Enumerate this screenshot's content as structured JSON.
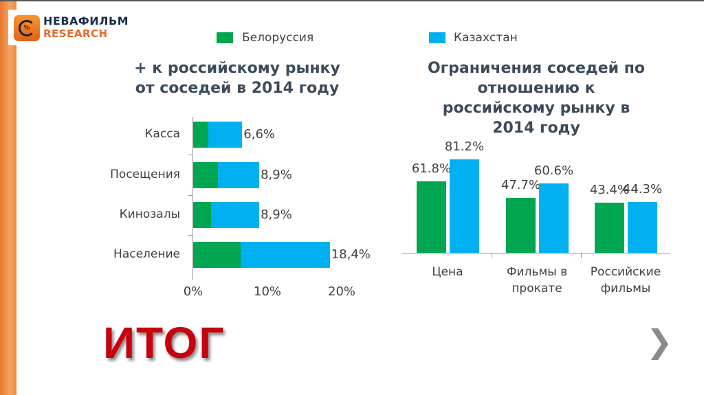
{
  "logo": {
    "line1": "НЕВАФИЛЬМ",
    "line2": "RESEARCH"
  },
  "legend": [
    {
      "name": "Белоруссия",
      "color": "#00a650"
    },
    {
      "name": "Казахстан",
      "color": "#00b0f0"
    }
  ],
  "footer": {
    "title": "ИТОГ",
    "next_icon": "chevron-right-icon"
  },
  "chart_data": [
    {
      "type": "bar",
      "orientation": "horizontal",
      "stacked": true,
      "title": "+ к российскому рынку от соседей в 2014 году",
      "categories": [
        "Касса",
        "Посещения",
        "Кинозалы",
        "Население"
      ],
      "series": [
        {
          "name": "Белоруссия",
          "values": [
            2.0,
            3.3,
            2.4,
            6.4
          ]
        },
        {
          "name": "Казахстан",
          "values": [
            4.6,
            5.6,
            6.5,
            12.0
          ]
        }
      ],
      "totals": [
        "6,6%",
        "8,9%",
        "8,9%",
        "18,4%"
      ],
      "xticks": [
        "0%",
        "10%",
        "20%"
      ],
      "xlim": [
        0,
        20
      ],
      "grid": false
    },
    {
      "type": "bar",
      "orientation": "vertical",
      "title": "Ограничения соседей по отношению к российскому рынку в 2014 году",
      "categories": [
        "Цена",
        "Фильмы в прокате",
        "Российские фильмы"
      ],
      "series": [
        {
          "name": "Белоруссия",
          "values": [
            61.8,
            47.7,
            43.4
          ],
          "labels": [
            "61.8%",
            "47.7%",
            "43.4%"
          ]
        },
        {
          "name": "Казахстан",
          "values": [
            81.2,
            60.6,
            44.3
          ],
          "labels": [
            "81.2%",
            "60.6%",
            "44.3%"
          ]
        }
      ],
      "ylim": [
        0,
        100
      ],
      "grid": false
    }
  ]
}
